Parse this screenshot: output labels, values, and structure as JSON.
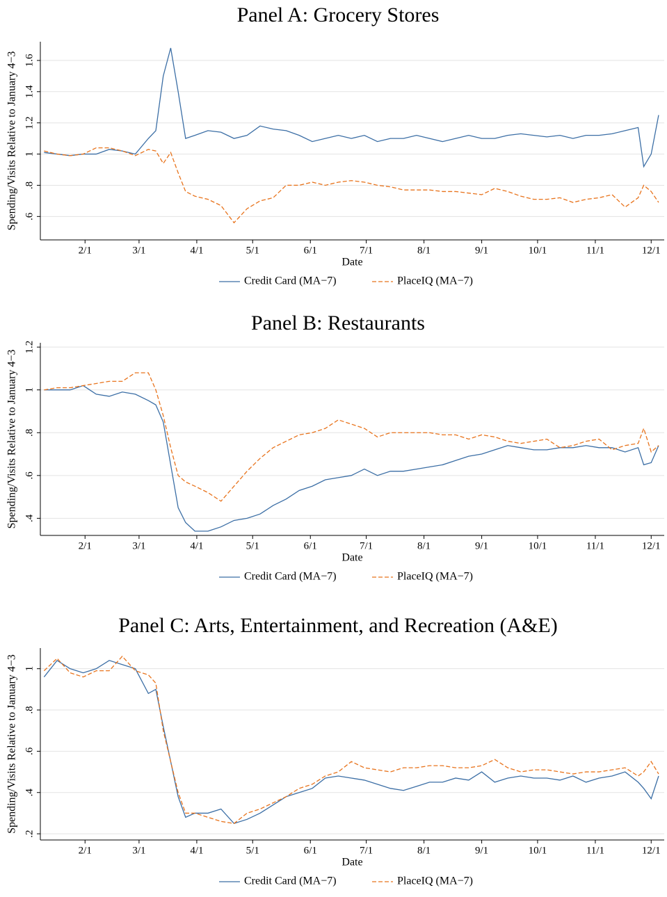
{
  "chart_data": [
    {
      "type": "line",
      "title": "Panel A: Grocery Stores",
      "x_label": "Date",
      "y_label": "Spending/Visits Relative to January 4−3",
      "x": [
        "1/10",
        "1/17",
        "1/24",
        "1/31",
        "2/7",
        "2/14",
        "2/21",
        "2/28",
        "3/6",
        "3/10",
        "3/14",
        "3/18",
        "3/22",
        "3/26",
        "3/31",
        "4/7",
        "4/14",
        "4/21",
        "4/28",
        "5/5",
        "5/12",
        "5/19",
        "5/26",
        "6/2",
        "6/9",
        "6/16",
        "6/23",
        "6/30",
        "7/7",
        "7/14",
        "7/21",
        "7/28",
        "8/4",
        "8/11",
        "8/18",
        "8/25",
        "9/1",
        "9/8",
        "9/15",
        "9/22",
        "9/29",
        "10/6",
        "10/13",
        "10/20",
        "10/27",
        "11/3",
        "11/10",
        "11/17",
        "11/24",
        "11/27",
        "12/1",
        "12/5"
      ],
      "xlim": [
        "1/8",
        "12/8"
      ],
      "xticks": [
        "2/1",
        "3/1",
        "4/1",
        "5/1",
        "6/1",
        "7/1",
        "8/1",
        "9/1",
        "10/1",
        "11/1",
        "12/1"
      ],
      "ylim": [
        0.45,
        1.72
      ],
      "yticks": [
        {
          "value": 0.6,
          "label": ".6"
        },
        {
          "value": 0.8,
          "label": ".8"
        },
        1,
        1.2,
        1.4,
        1.6
      ],
      "grid": true,
      "series": [
        {
          "name": "Credit Card (MA−7)",
          "color": "#3b6ea5",
          "line_style": "solid",
          "values": [
            1.01,
            1.0,
            0.99,
            1.0,
            1.0,
            1.03,
            1.02,
            1.0,
            1.1,
            1.15,
            1.5,
            1.68,
            1.4,
            1.1,
            1.12,
            1.15,
            1.14,
            1.1,
            1.12,
            1.18,
            1.16,
            1.15,
            1.12,
            1.08,
            1.1,
            1.12,
            1.1,
            1.12,
            1.08,
            1.1,
            1.1,
            1.12,
            1.1,
            1.08,
            1.1,
            1.12,
            1.1,
            1.1,
            1.12,
            1.13,
            1.12,
            1.11,
            1.12,
            1.1,
            1.12,
            1.12,
            1.13,
            1.15,
            1.17,
            0.92,
            1.0,
            1.25
          ]
        },
        {
          "name": "PlaceIQ (MA−7)",
          "color": "#e8731c",
          "line_style": "dashed",
          "values": [
            1.02,
            1.0,
            0.99,
            1.0,
            1.04,
            1.04,
            1.02,
            0.99,
            1.03,
            1.02,
            0.94,
            1.01,
            0.88,
            0.76,
            0.73,
            0.71,
            0.67,
            0.56,
            0.65,
            0.7,
            0.72,
            0.8,
            0.8,
            0.82,
            0.8,
            0.82,
            0.83,
            0.82,
            0.8,
            0.79,
            0.77,
            0.77,
            0.77,
            0.76,
            0.76,
            0.75,
            0.74,
            0.78,
            0.76,
            0.73,
            0.71,
            0.71,
            0.72,
            0.69,
            0.71,
            0.72,
            0.74,
            0.66,
            0.72,
            0.8,
            0.76,
            0.69
          ]
        }
      ]
    },
    {
      "type": "line",
      "title": "Panel B: Restaurants",
      "x_label": "Date",
      "y_label": "Spending/Visits Relative to January 4−3",
      "x": [
        "1/10",
        "1/17",
        "1/24",
        "1/31",
        "2/7",
        "2/14",
        "2/21",
        "2/28",
        "3/6",
        "3/10",
        "3/14",
        "3/18",
        "3/22",
        "3/26",
        "3/31",
        "4/7",
        "4/14",
        "4/21",
        "4/28",
        "5/5",
        "5/12",
        "5/19",
        "5/26",
        "6/2",
        "6/9",
        "6/16",
        "6/23",
        "6/30",
        "7/7",
        "7/14",
        "7/21",
        "7/28",
        "8/4",
        "8/11",
        "8/18",
        "8/25",
        "9/1",
        "9/8",
        "9/15",
        "9/22",
        "9/29",
        "10/6",
        "10/13",
        "10/20",
        "10/27",
        "11/3",
        "11/10",
        "11/17",
        "11/24",
        "11/27",
        "12/1",
        "12/5"
      ],
      "xlim": [
        "1/8",
        "12/8"
      ],
      "xticks": [
        "2/1",
        "3/1",
        "4/1",
        "5/1",
        "6/1",
        "7/1",
        "8/1",
        "9/1",
        "10/1",
        "11/1",
        "12/1"
      ],
      "ylim": [
        0.32,
        1.22
      ],
      "yticks": [
        {
          "value": 0.4,
          "label": ".4"
        },
        {
          "value": 0.6,
          "label": ".6"
        },
        {
          "value": 0.8,
          "label": ".8"
        },
        1,
        1.2
      ],
      "grid": true,
      "series": [
        {
          "name": "Credit Card (MA−7)",
          "color": "#3b6ea5",
          "line_style": "solid",
          "values": [
            1.0,
            1.0,
            1.0,
            1.02,
            0.98,
            0.97,
            0.99,
            0.98,
            0.95,
            0.93,
            0.85,
            0.65,
            0.45,
            0.38,
            0.34,
            0.34,
            0.36,
            0.39,
            0.4,
            0.42,
            0.46,
            0.49,
            0.53,
            0.55,
            0.58,
            0.59,
            0.6,
            0.63,
            0.6,
            0.62,
            0.62,
            0.63,
            0.64,
            0.65,
            0.67,
            0.69,
            0.7,
            0.72,
            0.74,
            0.73,
            0.72,
            0.72,
            0.73,
            0.73,
            0.74,
            0.73,
            0.73,
            0.71,
            0.73,
            0.65,
            0.66,
            0.74
          ]
        },
        {
          "name": "PlaceIQ (MA−7)",
          "color": "#e8731c",
          "line_style": "dashed",
          "values": [
            1.0,
            1.01,
            1.01,
            1.02,
            1.03,
            1.04,
            1.04,
            1.08,
            1.08,
            1.0,
            0.88,
            0.73,
            0.6,
            0.57,
            0.55,
            0.52,
            0.48,
            0.55,
            0.62,
            0.68,
            0.73,
            0.76,
            0.79,
            0.8,
            0.82,
            0.86,
            0.84,
            0.82,
            0.78,
            0.8,
            0.8,
            0.8,
            0.8,
            0.79,
            0.79,
            0.77,
            0.79,
            0.78,
            0.76,
            0.75,
            0.76,
            0.77,
            0.73,
            0.74,
            0.76,
            0.77,
            0.72,
            0.74,
            0.75,
            0.82,
            0.71,
            0.74
          ]
        }
      ]
    },
    {
      "type": "line",
      "title": "Panel C: Arts, Entertainment, and Recreation (A&E)",
      "x_label": "Date",
      "y_label": "Spending/Visits Relative to January 4−3",
      "x": [
        "1/10",
        "1/17",
        "1/24",
        "1/31",
        "2/7",
        "2/14",
        "2/21",
        "2/28",
        "3/6",
        "3/10",
        "3/14",
        "3/18",
        "3/22",
        "3/26",
        "3/31",
        "4/7",
        "4/14",
        "4/21",
        "4/28",
        "5/5",
        "5/12",
        "5/19",
        "5/26",
        "6/2",
        "6/9",
        "6/16",
        "6/23",
        "6/30",
        "7/7",
        "7/14",
        "7/21",
        "7/28",
        "8/4",
        "8/11",
        "8/18",
        "8/25",
        "9/1",
        "9/8",
        "9/15",
        "9/22",
        "9/29",
        "10/6",
        "10/13",
        "10/20",
        "10/27",
        "11/3",
        "11/10",
        "11/17",
        "11/24",
        "11/27",
        "12/1",
        "12/5"
      ],
      "xlim": [
        "1/8",
        "12/8"
      ],
      "xticks": [
        "2/1",
        "3/1",
        "4/1",
        "5/1",
        "6/1",
        "7/1",
        "8/1",
        "9/1",
        "10/1",
        "11/1",
        "12/1"
      ],
      "ylim": [
        0.17,
        1.1
      ],
      "yticks": [
        {
          "value": 0.2,
          "label": ".2"
        },
        {
          "value": 0.4,
          "label": ".4"
        },
        {
          "value": 0.6,
          "label": ".6"
        },
        {
          "value": 0.8,
          "label": ".8"
        },
        1
      ],
      "grid": true,
      "series": [
        {
          "name": "Credit Card (MA−7)",
          "color": "#3b6ea5",
          "line_style": "solid",
          "values": [
            0.96,
            1.04,
            1.0,
            0.98,
            1.0,
            1.04,
            1.02,
            1.0,
            0.88,
            0.9,
            0.72,
            0.55,
            0.38,
            0.28,
            0.3,
            0.3,
            0.32,
            0.25,
            0.27,
            0.3,
            0.34,
            0.38,
            0.4,
            0.42,
            0.47,
            0.48,
            0.47,
            0.46,
            0.44,
            0.42,
            0.41,
            0.43,
            0.45,
            0.45,
            0.47,
            0.46,
            0.5,
            0.45,
            0.47,
            0.48,
            0.47,
            0.47,
            0.46,
            0.48,
            0.45,
            0.47,
            0.48,
            0.5,
            0.45,
            0.42,
            0.37,
            0.48
          ]
        },
        {
          "name": "PlaceIQ (MA−7)",
          "color": "#e8731c",
          "line_style": "dashed",
          "values": [
            0.99,
            1.05,
            0.98,
            0.96,
            0.99,
            0.99,
            1.06,
            0.99,
            0.97,
            0.93,
            0.7,
            0.55,
            0.4,
            0.3,
            0.3,
            0.28,
            0.26,
            0.25,
            0.3,
            0.32,
            0.35,
            0.38,
            0.42,
            0.44,
            0.48,
            0.5,
            0.55,
            0.52,
            0.51,
            0.5,
            0.52,
            0.52,
            0.53,
            0.53,
            0.52,
            0.52,
            0.53,
            0.56,
            0.52,
            0.5,
            0.51,
            0.51,
            0.5,
            0.49,
            0.5,
            0.5,
            0.51,
            0.52,
            0.48,
            0.5,
            0.55,
            0.49
          ]
        }
      ]
    }
  ]
}
